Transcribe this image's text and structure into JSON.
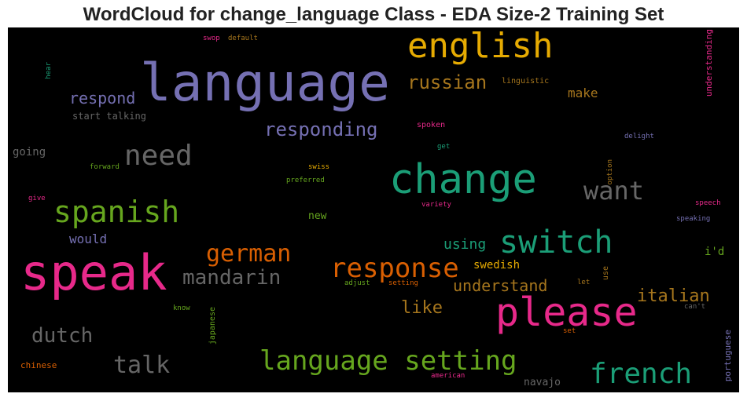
{
  "chart_data": {
    "type": "wordcloud",
    "title": "WordCloud for change_language Class - EDA Size-2 Training Set",
    "background": "#000000",
    "words": [
      {
        "text": "language",
        "color": "#7570b3"
      },
      {
        "text": "speak",
        "color": "#e7298a"
      },
      {
        "text": "change",
        "color": "#1b9e77"
      },
      {
        "text": "please",
        "color": "#e7298a"
      },
      {
        "text": "english",
        "color": "#e6ab02"
      },
      {
        "text": "switch",
        "color": "#1b9e77"
      },
      {
        "text": "spanish",
        "color": "#66a61e"
      },
      {
        "text": "language setting",
        "color": "#66a61e"
      },
      {
        "text": "french",
        "color": "#1b9e77"
      },
      {
        "text": "need",
        "color": "#666666"
      },
      {
        "text": "want",
        "color": "#666666"
      },
      {
        "text": "response",
        "color": "#d95f02"
      },
      {
        "text": "german",
        "color": "#d95f02"
      },
      {
        "text": "mandarin",
        "color": "#666666"
      },
      {
        "text": "responding",
        "color": "#7570b3"
      },
      {
        "text": "russian",
        "color": "#a6761d"
      },
      {
        "text": "talk",
        "color": "#666666"
      },
      {
        "text": "italian",
        "color": "#a6761d"
      },
      {
        "text": "understand",
        "color": "#a6761d"
      },
      {
        "text": "dutch",
        "color": "#666666"
      },
      {
        "text": "respond",
        "color": "#7570b3"
      },
      {
        "text": "like",
        "color": "#a6761d"
      },
      {
        "text": "make",
        "color": "#a6761d"
      },
      {
        "text": "using",
        "color": "#1b9e77"
      },
      {
        "text": "swedish",
        "color": "#e6ab02"
      },
      {
        "text": "would",
        "color": "#7570b3"
      },
      {
        "text": "i'd",
        "color": "#66a61e"
      },
      {
        "text": "going",
        "color": "#666666"
      },
      {
        "text": "start talking",
        "color": "#666666"
      },
      {
        "text": "new",
        "color": "#66a61e"
      },
      {
        "text": "navajo",
        "color": "#666666"
      },
      {
        "text": "chinese",
        "color": "#d95f02"
      },
      {
        "text": "understanding",
        "color": "#e7298a"
      },
      {
        "text": "portuguese",
        "color": "#7570b3"
      },
      {
        "text": "japanese",
        "color": "#66a61e"
      },
      {
        "text": "linguistic",
        "color": "#a6761d"
      },
      {
        "text": "spoken",
        "color": "#e7298a"
      },
      {
        "text": "get",
        "color": "#1b9e77"
      },
      {
        "text": "forward",
        "color": "#66a61e"
      },
      {
        "text": "swiss",
        "color": "#e6ab02"
      },
      {
        "text": "preferred",
        "color": "#66a61e"
      },
      {
        "text": "delight",
        "color": "#7570b3"
      },
      {
        "text": "option",
        "color": "#a6761d"
      },
      {
        "text": "speech",
        "color": "#e7298a"
      },
      {
        "text": "speaking",
        "color": "#7570b3"
      },
      {
        "text": "variety",
        "color": "#e7298a"
      },
      {
        "text": "give",
        "color": "#e7298a"
      },
      {
        "text": "hear",
        "color": "#1b9e77"
      },
      {
        "text": "swop",
        "color": "#e7298a"
      },
      {
        "text": "default",
        "color": "#a6761d"
      },
      {
        "text": "adjust",
        "color": "#66a61e"
      },
      {
        "text": "setting",
        "color": "#d95f02"
      },
      {
        "text": "let",
        "color": "#a6761d"
      },
      {
        "text": "use",
        "color": "#a6761d"
      },
      {
        "text": "can't",
        "color": "#666666"
      },
      {
        "text": "know",
        "color": "#66a61e"
      },
      {
        "text": "set",
        "color": "#d95f02"
      },
      {
        "text": "american",
        "color": "#e7298a"
      }
    ]
  }
}
